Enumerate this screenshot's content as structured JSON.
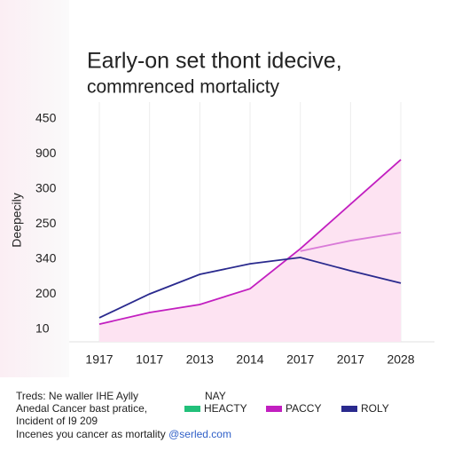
{
  "chart_data": {
    "type": "line",
    "title": "Early-on set thont idecive,",
    "subtitle": "commrenced mortalicty",
    "y_label": "Deepecily",
    "categories": [
      "1917",
      "1017",
      "2013",
      "2014",
      "2017",
      "2017",
      "2028"
    ],
    "y_categories": [
      "10",
      "200",
      "340",
      "250",
      "300",
      "900",
      "450"
    ],
    "area": true,
    "area_color": "#fde3f2",
    "grid": true,
    "series": [
      {
        "name": "PACCY",
        "color": "#c21fc0",
        "values": [
          0.15,
          0.48,
          0.71,
          1.16,
          2.3,
          3.57,
          4.84
        ]
      },
      {
        "name": "ROLY",
        "color": "#2a2a8e",
        "values": [
          0.33,
          1.01,
          1.57,
          1.87,
          2.05,
          1.67,
          1.32
        ]
      },
      {
        "name": "HEACTY",
        "color": "#d97ad8",
        "legend_color": "#22c07a",
        "values": [
          null,
          null,
          null,
          null,
          2.23,
          2.53,
          2.76
        ]
      }
    ],
    "legend_title": "NAY",
    "notes": [
      "Treds: Ne waller IHE Aylly",
      "Anedal  Cancer bast pratice,",
      "Incident of I9 209"
    ],
    "source": "Incenes you cancer as mortality",
    "source_link": "@serled.com"
  }
}
